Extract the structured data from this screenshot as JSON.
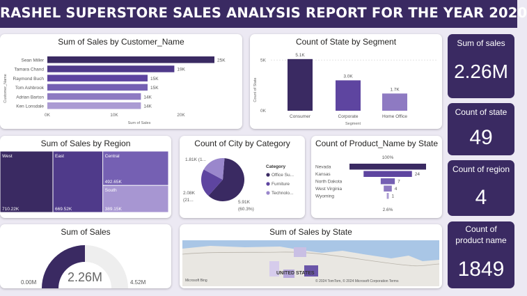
{
  "report_title": "RASHEL SUPERSTORE SALES ANALYSIS REPORT FOR THE YEAR 2020",
  "customer_chart": {
    "title": "Sum of Sales by Customer_Name",
    "ylabel": "Customer_Name",
    "xlabel": "Sum of Sales",
    "ticks": [
      "0K",
      "10K",
      "20K"
    ],
    "chart_data": {
      "type": "bar",
      "orientation": "horizontal",
      "categories": [
        "Sean Miller",
        "Tamara Chand",
        "Raymond Buch",
        "Tom Ashbrook",
        "Adrian Barton",
        "Ken Lonsdale"
      ],
      "values": [
        25000,
        19000,
        15000,
        15000,
        14000,
        14000
      ],
      "labels": [
        "25K",
        "19K",
        "15K",
        "15K",
        "14K",
        "14K"
      ],
      "xlim": [
        0,
        25000
      ],
      "colors": [
        "#3a2a62",
        "#4f3a8a",
        "#5e45a0",
        "#7560b3",
        "#8e7ac2",
        "#ab9bd3"
      ]
    }
  },
  "segment_chart": {
    "title": "Count of State by Segment",
    "ylabel": "Count of State",
    "xlabel": "Segment",
    "ticks": [
      "0K",
      "5K"
    ],
    "chart_data": {
      "type": "bar",
      "categories": [
        "Consumer",
        "Corporate",
        "Home Office"
      ],
      "values": [
        5100,
        3000,
        1700
      ],
      "labels": [
        "5.1K",
        "3.0K",
        "1.7K"
      ],
      "ylim": [
        0,
        5500
      ],
      "colors": [
        "#3a2a62",
        "#5e45a0",
        "#8e7ac2"
      ]
    }
  },
  "kpis": {
    "sales": {
      "label": "Sum of sales",
      "value": "2.26M"
    },
    "state": {
      "label": "Count of state",
      "value": "49"
    },
    "region": {
      "label": "Count of region",
      "value": "4"
    },
    "product": {
      "label1": "Count of",
      "label2": "product name",
      "value": "1849"
    }
  },
  "region_chart": {
    "title": "Sum of Sales by Region",
    "chart_data": {
      "type": "treemap",
      "categories": [
        "West",
        "East",
        "Central",
        "South"
      ],
      "values": [
        710220,
        669520,
        492650,
        389150
      ],
      "labels": [
        "710.22K",
        "669.52K",
        "492.65K",
        "389.15K"
      ],
      "colors": [
        "#3a2a62",
        "#4f3a8a",
        "#7560b3",
        "#a796d2"
      ]
    }
  },
  "city_chart": {
    "title": "Count of City by Category",
    "legend_title": "Category",
    "legend": [
      "Office Su...",
      "Furniture",
      "Technolo..."
    ],
    "slice_labels": [
      "5.91K",
      "(60.3%)",
      "2.08K",
      "(21...",
      "1.81K (1..."
    ],
    "chart_data": {
      "type": "pie",
      "categories": [
        "Office Supplies",
        "Furniture",
        "Technology"
      ],
      "values": [
        5910,
        2080,
        1810
      ],
      "colors": [
        "#3a2a62",
        "#5e45a0",
        "#9a87cc"
      ]
    }
  },
  "product_chart": {
    "title": "Count of Product_Name by State",
    "top_label": "100%",
    "bottom_label": "2.6%",
    "chart_data": {
      "type": "funnel",
      "categories": [
        "Nevada",
        "Kansas",
        "North Dakota",
        "West Virginia",
        "Wyoming"
      ],
      "values": [
        38,
        24,
        7,
        4,
        1
      ],
      "labels": [
        "",
        "24",
        "7",
        "4",
        "1"
      ],
      "colors": [
        "#3a2a62",
        "#5e45a0",
        "#7560b3",
        "#8e7ac2",
        "#ab9bd3"
      ]
    }
  },
  "gauge_chart": {
    "title": "Sum of Sales",
    "value_label": "2.26M",
    "min_label": "0.00M",
    "max_label": "4.52M",
    "chart_data": {
      "type": "gauge",
      "value": 2.26,
      "min": 0,
      "max": 4.52,
      "colors": [
        "#3a2a62",
        "#eeeeee"
      ]
    }
  },
  "map_chart": {
    "title": "Sum of Sales by State",
    "country_label": "UNITED STATES",
    "attribution": "© 2024 TomTom, © 2024 Microsoft Corporation  Terms",
    "brand": "Microsoft Bing"
  }
}
